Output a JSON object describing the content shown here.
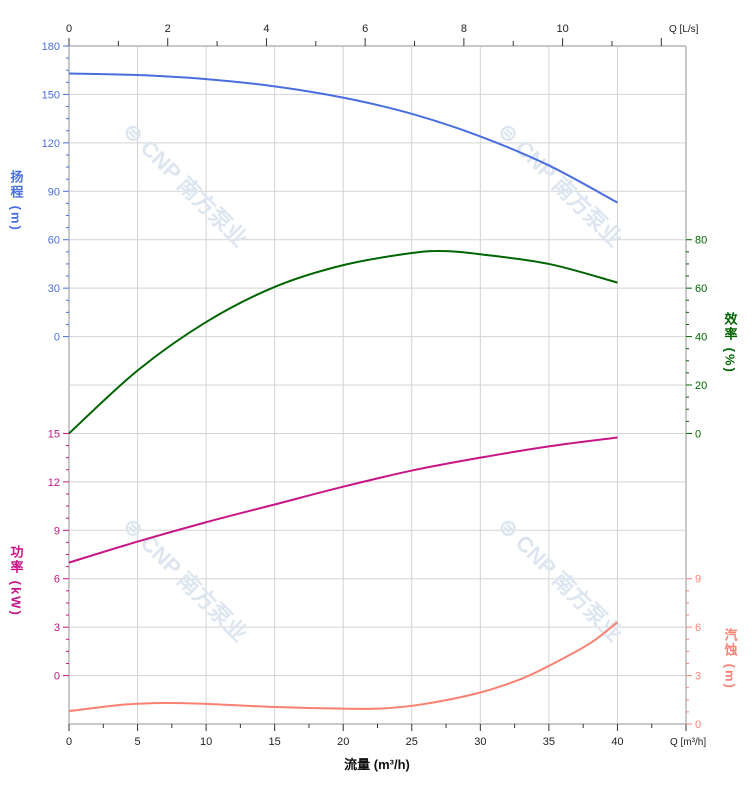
{
  "chart_data": {
    "type": "line",
    "title": "",
    "xlabel": "流量 (m³/h)",
    "x_unit_label": "Q [m³/h]",
    "xlim": [
      0,
      45
    ],
    "x_ticks": [
      0,
      5,
      10,
      15,
      20,
      25,
      30,
      35,
      40
    ],
    "top_axis": {
      "unit_label": "Q [L/s]",
      "range": [
        0,
        12.5
      ],
      "ticks": [
        0,
        2,
        4,
        6,
        8,
        10
      ]
    },
    "grid": true,
    "watermark": "CNP 南方泵业",
    "series": [
      {
        "name": "扬程",
        "axis_label": "扬程 (m)",
        "color": "#4a6ee0",
        "axis_side": "left",
        "ylim": [
          0,
          180
        ],
        "ticks": [
          0,
          30,
          60,
          90,
          120,
          150,
          180
        ],
        "x": [
          0,
          5,
          10,
          15,
          20,
          25,
          30,
          35,
          40
        ],
        "y": [
          163,
          162,
          159.5,
          155,
          148,
          138,
          124,
          106,
          83
        ]
      },
      {
        "name": "效率",
        "axis_label": "效率 (%)",
        "color": "#006400",
        "axis_side": "right",
        "ylim": [
          0,
          80
        ],
        "ticks": [
          0,
          20,
          40,
          60,
          80
        ],
        "x": [
          0,
          5,
          10,
          15,
          20,
          25,
          27.5,
          30,
          35,
          40
        ],
        "y": [
          0,
          26,
          46,
          60.5,
          69.5,
          74.5,
          75.3,
          74,
          70,
          62.3
        ]
      },
      {
        "name": "功率",
        "axis_label": "功率 (kW)",
        "color": "#c71585",
        "axis_side": "left",
        "ylim": [
          0,
          15
        ],
        "ticks": [
          0,
          3,
          6,
          9,
          12,
          15
        ],
        "x": [
          0,
          5,
          10,
          15,
          20,
          25,
          30,
          35,
          40
        ],
        "y": [
          7.0,
          8.3,
          9.5,
          10.6,
          11.7,
          12.7,
          13.5,
          14.2,
          14.75
        ]
      },
      {
        "name": "汽蚀",
        "axis_label": "汽蚀 (m)",
        "color": "#fa8072",
        "axis_side": "right",
        "ylim": [
          0,
          9
        ],
        "ticks": [
          0,
          3,
          6,
          9
        ],
        "x": [
          0,
          4,
          7,
          10,
          15,
          20,
          23,
          26,
          30,
          33,
          35,
          38,
          40
        ],
        "y": [
          0.8,
          1.2,
          1.3,
          1.25,
          1.05,
          0.95,
          0.97,
          1.25,
          1.95,
          2.8,
          3.6,
          5.0,
          6.3
        ]
      }
    ]
  }
}
